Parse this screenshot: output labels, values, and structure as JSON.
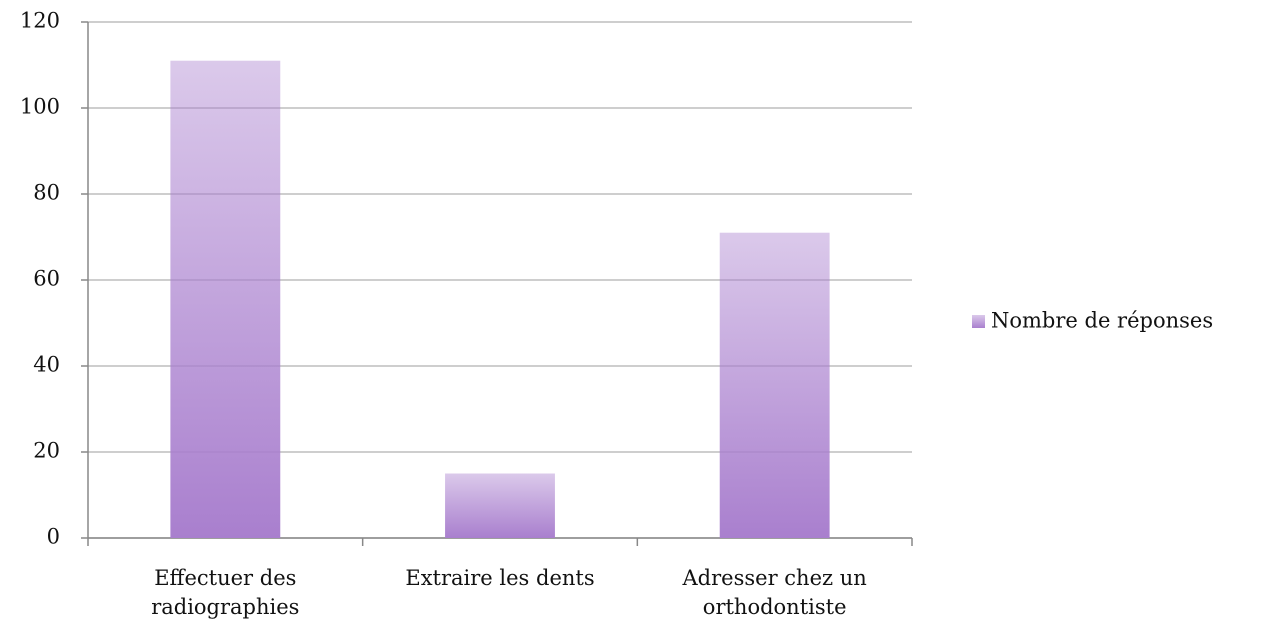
{
  "chart_data": {
    "type": "bar",
    "categories": [
      "Effectuer des radiographies",
      "Extraire les dents",
      "Adresser chez un orthodontiste"
    ],
    "series": [
      {
        "name": "Nombre de réponses",
        "color": "#a97fce",
        "values": [
          111,
          15,
          71
        ]
      }
    ],
    "ylim": [
      0,
      120
    ],
    "yticks": [
      0,
      20,
      40,
      60,
      80,
      100,
      120
    ],
    "grid": true,
    "legend": "right"
  }
}
